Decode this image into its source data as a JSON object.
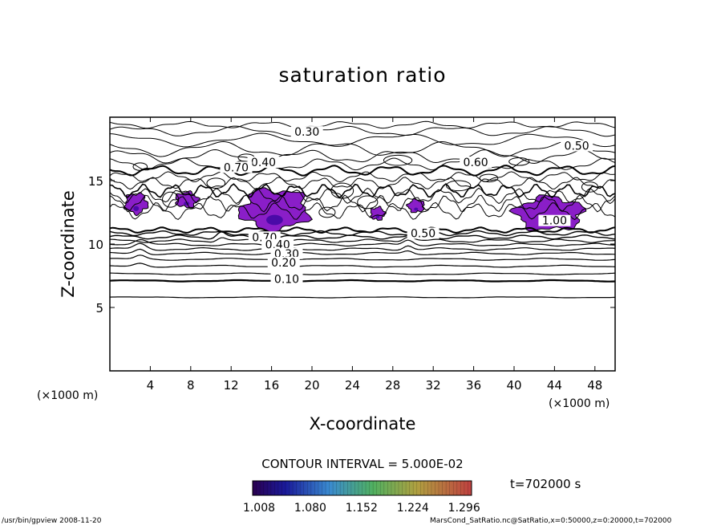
{
  "chart_data": {
    "type": "contour",
    "title": "saturation ratio",
    "xlabel": "X-coordinate",
    "ylabel": "Z-coordinate",
    "x_unit": "(×1000 m)",
    "xlim": [
      0,
      50
    ],
    "ylim": [
      0,
      20
    ],
    "x_ticks": [
      4,
      8,
      12,
      16,
      20,
      24,
      28,
      32,
      36,
      40,
      44,
      48
    ],
    "y_ticks": [
      5,
      10,
      15
    ],
    "contour_interval_text": "CONTOUR INTERVAL = 5.000E-02",
    "contour_labels": [
      {
        "text": "0.30",
        "x": 19.5,
        "z": 18.6
      },
      {
        "text": "0.50",
        "x": 46.2,
        "z": 17.5
      },
      {
        "text": "0.60",
        "x": 36.2,
        "z": 16.2
      },
      {
        "text": "0.40",
        "x": 15.2,
        "z": 16.2
      },
      {
        "text": "0.70",
        "x": 12.5,
        "z": 15.8
      },
      {
        "text": "1.00",
        "x": 44.0,
        "z": 11.6
      },
      {
        "text": "0.50",
        "x": 31.0,
        "z": 10.6
      },
      {
        "text": "0.70",
        "x": 15.3,
        "z": 10.3
      },
      {
        "text": "0.40",
        "x": 16.6,
        "z": 9.7
      },
      {
        "text": "0.30",
        "x": 17.5,
        "z": 9.0
      },
      {
        "text": "0.20",
        "x": 17.2,
        "z": 8.3
      },
      {
        "text": "0.10",
        "x": 17.5,
        "z": 7.0
      }
    ],
    "colorbar": {
      "ticks": [
        "1.008",
        "1.080",
        "1.152",
        "1.224",
        "1.296"
      ]
    },
    "time_label": "t=702000  s",
    "colors": {
      "fill": "#8a1ec8",
      "fill_core": "#4a0aa8",
      "line": "#000000"
    }
  },
  "footer": {
    "left": "/usr/bin/gpview  2008-11-20",
    "right": "MarsCond_SatRatio.nc@SatRatio,x=0:50000,z=0:20000,t=702000"
  }
}
